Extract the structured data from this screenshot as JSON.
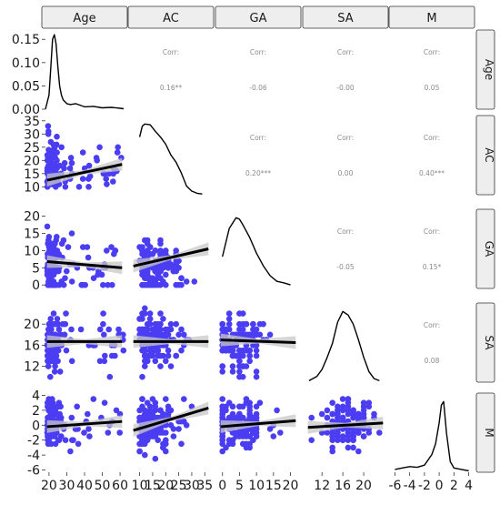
{
  "chart_data": {
    "type": "scatter",
    "variables": [
      "Age",
      "AC",
      "GA",
      "SA",
      "M"
    ],
    "point_color": "#4b3df2",
    "fit_color": "#000000",
    "band_color": "#c8c8c8",
    "strip_fill": "#eeeeee",
    "axes": {
      "Age": {
        "lim": [
          18,
          62
        ],
        "ticks": [
          "20",
          "30",
          "40",
          "50",
          "60"
        ],
        "tickvals": [
          20,
          30,
          40,
          50,
          60
        ]
      },
      "AC": {
        "lim": [
          7,
          37
        ],
        "ticks": [
          "10",
          "15",
          "20",
          "25",
          "30",
          "35"
        ],
        "tickvals": [
          10,
          15,
          20,
          25,
          30,
          35
        ]
      },
      "GA": {
        "lim": [
          -1,
          22
        ],
        "ticks": [
          "0",
          "5",
          "10",
          "15",
          "20"
        ],
        "tickvals": [
          0,
          5,
          10,
          15,
          20
        ]
      },
      "SA": {
        "lim": [
          9,
          24
        ],
        "ticks": [
          "12",
          "16",
          "20"
        ],
        "tickvals": [
          12,
          16,
          20
        ]
      },
      "M": {
        "lim": [
          -6.3,
          4.3
        ],
        "ticks": [
          "-6",
          "-4",
          "-2",
          "0",
          "2",
          "4"
        ],
        "tickvals": [
          -6,
          -4,
          -2,
          0,
          2,
          4
        ]
      }
    },
    "density_axis": {
      "ticks": [
        "0.00",
        "0.05",
        "0.10",
        "0.15"
      ],
      "tickvals": [
        0.0,
        0.05,
        0.1,
        0.15
      ],
      "lim": [
        0,
        0.17
      ]
    },
    "correlations": [
      {
        "row": "Age",
        "col": "AC",
        "label": "Corr:",
        "value": "0.16**"
      },
      {
        "row": "Age",
        "col": "GA",
        "label": "Corr:",
        "value": "-0.06"
      },
      {
        "row": "Age",
        "col": "SA",
        "label": "Corr:",
        "value": "-0.00"
      },
      {
        "row": "Age",
        "col": "M",
        "label": "Corr:",
        "value": "0.05"
      },
      {
        "row": "AC",
        "col": "GA",
        "label": "Corr:",
        "value": "0.20***"
      },
      {
        "row": "AC",
        "col": "SA",
        "label": "Corr:",
        "value": "0.00"
      },
      {
        "row": "AC",
        "col": "M",
        "label": "Corr:",
        "value": "0.40***"
      },
      {
        "row": "GA",
        "col": "SA",
        "label": "Corr:",
        "value": "-0.05"
      },
      {
        "row": "GA",
        "col": "M",
        "label": "Corr:",
        "value": "0.15*"
      },
      {
        "row": "SA",
        "col": "M",
        "label": "Corr:",
        "value": "0.08"
      }
    ],
    "fits": [
      {
        "row": "AC",
        "col": "Age",
        "y_at_xmin": 12.5,
        "y_at_xmax": 18.5
      },
      {
        "row": "GA",
        "col": "Age",
        "y_at_xmin": 6.8,
        "y_at_xmax": 5.0
      },
      {
        "row": "SA",
        "col": "Age",
        "y_at_xmin": 16.7,
        "y_at_xmax": 16.7
      },
      {
        "row": "M",
        "col": "Age",
        "y_at_xmin": -0.2,
        "y_at_xmax": 0.5
      },
      {
        "row": "GA",
        "col": "AC",
        "y_at_xmin": 5.5,
        "y_at_xmax": 10.5
      },
      {
        "row": "SA",
        "col": "AC",
        "y_at_xmin": 16.7,
        "y_at_xmax": 16.7
      },
      {
        "row": "M",
        "col": "AC",
        "y_at_xmin": -0.7,
        "y_at_xmax": 2.3
      },
      {
        "row": "SA",
        "col": "GA",
        "y_at_xmin": 17.0,
        "y_at_xmax": 16.5
      },
      {
        "row": "M",
        "col": "GA",
        "y_at_xmin": -0.2,
        "y_at_xmax": 0.6
      },
      {
        "row": "M",
        "col": "SA",
        "y_at_xmin": -0.3,
        "y_at_xmax": 0.3
      }
    ],
    "densities": {
      "Age": {
        "x": [
          18,
          20,
          21,
          22,
          23,
          24,
          25,
          26,
          27,
          28,
          30,
          32,
          35,
          40,
          45,
          50,
          55,
          60,
          62
        ],
        "y": [
          0.0,
          0.03,
          0.09,
          0.15,
          0.16,
          0.14,
          0.09,
          0.05,
          0.03,
          0.02,
          0.012,
          0.01,
          0.012,
          0.005,
          0.006,
          0.003,
          0.004,
          0.002,
          0.001
        ]
      },
      "AC": {
        "x": [
          10,
          11,
          12,
          14,
          16,
          18,
          20,
          22,
          24,
          26,
          28,
          30,
          32,
          34
        ],
        "y": [
          0.8,
          0.95,
          0.98,
          0.97,
          0.88,
          0.8,
          0.7,
          0.55,
          0.45,
          0.3,
          0.12,
          0.05,
          0.02,
          0.01
        ]
      },
      "GA": {
        "x": [
          0,
          2,
          4,
          5,
          6,
          8,
          10,
          12,
          14,
          16,
          18,
          20
        ],
        "y": [
          0.45,
          0.85,
          1.0,
          0.98,
          0.9,
          0.72,
          0.5,
          0.32,
          0.18,
          0.1,
          0.08,
          0.05
        ]
      },
      "SA": {
        "x": [
          9.5,
          11,
          12,
          13,
          14,
          15,
          16,
          17,
          18,
          19,
          20,
          21,
          22,
          23
        ],
        "y": [
          0.02,
          0.08,
          0.18,
          0.35,
          0.55,
          0.85,
          1.0,
          0.95,
          0.82,
          0.6,
          0.35,
          0.15,
          0.05,
          0.02
        ]
      },
      "M": {
        "x": [
          -6,
          -5,
          -4,
          -3,
          -2,
          -1,
          -0.5,
          0,
          0.3,
          0.6,
          1,
          1.5,
          2,
          3,
          4
        ],
        "y": [
          0.04,
          0.06,
          0.08,
          0.07,
          0.1,
          0.25,
          0.4,
          0.7,
          0.95,
          1.0,
          0.55,
          0.15,
          0.06,
          0.04,
          0.02
        ]
      }
    }
  }
}
